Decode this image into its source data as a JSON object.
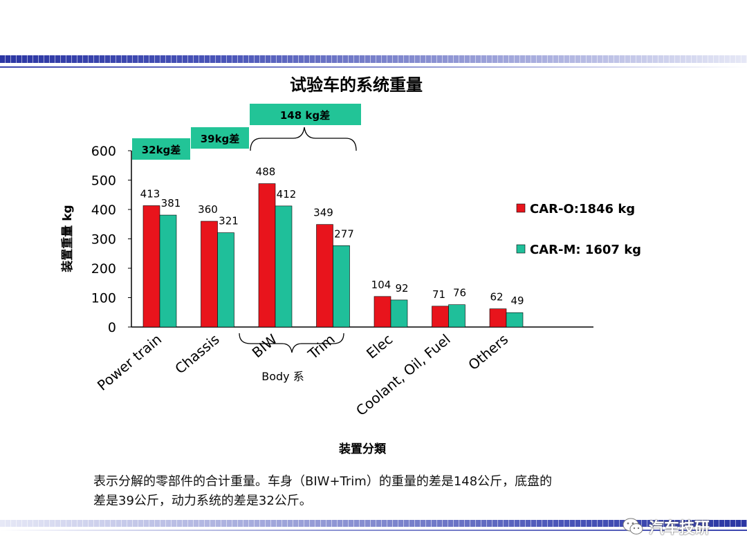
{
  "chart_data": {
    "type": "bar",
    "title": "试验车的系统重量",
    "xlabel": "装置分類",
    "ylabel": "装置重量 kg",
    "ylim": [
      0,
      600
    ],
    "yticks": [
      0,
      100,
      200,
      300,
      400,
      500,
      600
    ],
    "categories": [
      "Power train",
      "Chassis",
      "BIW",
      "Trim",
      "Elec",
      "Coolant, Oil, Fuel",
      "Others"
    ],
    "series": [
      {
        "name": "CAR-O:1846 kg",
        "values": [
          413,
          360,
          488,
          349,
          104,
          71,
          62
        ],
        "color": "#e8141c"
      },
      {
        "name": "CAR-M: 1607 kg",
        "values": [
          381,
          321,
          412,
          277,
          92,
          76,
          49
        ],
        "color": "#1fbf9a"
      }
    ],
    "legend_position": "right",
    "grid": false,
    "annotations": {
      "diff_boxes": [
        "32kg差",
        "39kg差",
        "148 kg差"
      ],
      "group_label": "Body 系"
    }
  },
  "caption": {
    "line1": "表示分解的零部件的合计重量。车身（BIW+Trim）的重量的差是148公斤，底盘的",
    "line2": "差是39公斤，动力系统的差是32公斤。"
  },
  "watermark": {
    "text": "汽车技研",
    "icon": "wechat-icon"
  },
  "colors": {
    "box": "#22c497",
    "band": "#2b36a3"
  }
}
